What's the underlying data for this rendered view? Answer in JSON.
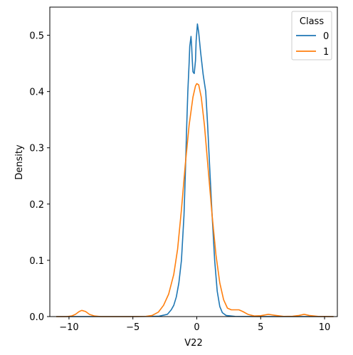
{
  "chart_data": {
    "type": "line",
    "title": "",
    "xlabel": "V22",
    "ylabel": "Density",
    "xlim": [
      -11.5,
      11.0
    ],
    "ylim": [
      0,
      0.55
    ],
    "xticks": [
      -10,
      -5,
      0,
      5,
      10
    ],
    "xtick_labels": [
      "−10",
      "−5",
      "0",
      "5",
      "10"
    ],
    "yticks": [
      0.0,
      0.1,
      0.2,
      0.3,
      0.4,
      0.5
    ],
    "ytick_labels": [
      "0.0",
      "0.1",
      "0.2",
      "0.3",
      "0.4",
      "0.5"
    ],
    "grid": false,
    "legend": {
      "title": "Class",
      "placement": "top-right"
    },
    "series": [
      {
        "name": "0",
        "color": "#1f77b4",
        "points": [
          [
            -11.0,
            0.0
          ],
          [
            -5.0,
            0.0
          ],
          [
            -3.0,
            0.0005
          ],
          [
            -2.3,
            0.004
          ],
          [
            -2.0,
            0.012
          ],
          [
            -1.8,
            0.02
          ],
          [
            -1.6,
            0.035
          ],
          [
            -1.4,
            0.06
          ],
          [
            -1.2,
            0.1
          ],
          [
            -1.0,
            0.18
          ],
          [
            -0.9,
            0.25
          ],
          [
            -0.8,
            0.33
          ],
          [
            -0.7,
            0.4
          ],
          [
            -0.6,
            0.45
          ],
          [
            -0.55,
            0.48
          ],
          [
            -0.45,
            0.498
          ],
          [
            -0.4,
            0.48
          ],
          [
            -0.35,
            0.455
          ],
          [
            -0.3,
            0.435
          ],
          [
            -0.2,
            0.432
          ],
          [
            -0.1,
            0.455
          ],
          [
            -0.05,
            0.49
          ],
          [
            0.05,
            0.52
          ],
          [
            0.15,
            0.505
          ],
          [
            0.3,
            0.47
          ],
          [
            0.5,
            0.43
          ],
          [
            0.7,
            0.4
          ],
          [
            0.85,
            0.34
          ],
          [
            1.0,
            0.27
          ],
          [
            1.2,
            0.18
          ],
          [
            1.4,
            0.1
          ],
          [
            1.6,
            0.045
          ],
          [
            1.8,
            0.018
          ],
          [
            2.0,
            0.007
          ],
          [
            2.3,
            0.002
          ],
          [
            3.0,
            0.0003
          ],
          [
            5.0,
            0.0
          ],
          [
            10.7,
            0.0
          ]
        ]
      },
      {
        "name": "1",
        "color": "#ff7f0e",
        "points": [
          [
            -11.0,
            0.0
          ],
          [
            -10.2,
            0.0
          ],
          [
            -9.8,
            0.001
          ],
          [
            -9.5,
            0.004
          ],
          [
            -9.2,
            0.009
          ],
          [
            -9.0,
            0.011
          ],
          [
            -8.7,
            0.009
          ],
          [
            -8.4,
            0.004
          ],
          [
            -8.0,
            0.001
          ],
          [
            -7.5,
            0.0
          ],
          [
            -5.0,
            0.0
          ],
          [
            -4.0,
            0.0003
          ],
          [
            -3.5,
            0.002
          ],
          [
            -3.0,
            0.008
          ],
          [
            -2.6,
            0.02
          ],
          [
            -2.2,
            0.04
          ],
          [
            -1.8,
            0.075
          ],
          [
            -1.5,
            0.12
          ],
          [
            -1.2,
            0.19
          ],
          [
            -0.9,
            0.27
          ],
          [
            -0.6,
            0.34
          ],
          [
            -0.3,
            0.39
          ],
          [
            -0.1,
            0.41
          ],
          [
            0.0,
            0.414
          ],
          [
            0.15,
            0.412
          ],
          [
            0.35,
            0.39
          ],
          [
            0.6,
            0.34
          ],
          [
            0.9,
            0.26
          ],
          [
            1.2,
            0.18
          ],
          [
            1.5,
            0.11
          ],
          [
            1.8,
            0.06
          ],
          [
            2.1,
            0.03
          ],
          [
            2.4,
            0.015
          ],
          [
            2.7,
            0.012
          ],
          [
            3.0,
            0.012
          ],
          [
            3.3,
            0.012
          ],
          [
            3.6,
            0.009
          ],
          [
            4.0,
            0.004
          ],
          [
            4.5,
            0.001
          ],
          [
            5.0,
            0.0015
          ],
          [
            5.6,
            0.004
          ],
          [
            6.2,
            0.002
          ],
          [
            6.8,
            0.0003
          ],
          [
            7.5,
            0.0005
          ],
          [
            8.0,
            0.002
          ],
          [
            8.4,
            0.004
          ],
          [
            8.8,
            0.002
          ],
          [
            9.5,
            0.0002
          ],
          [
            10.7,
            0.0
          ]
        ]
      }
    ]
  }
}
